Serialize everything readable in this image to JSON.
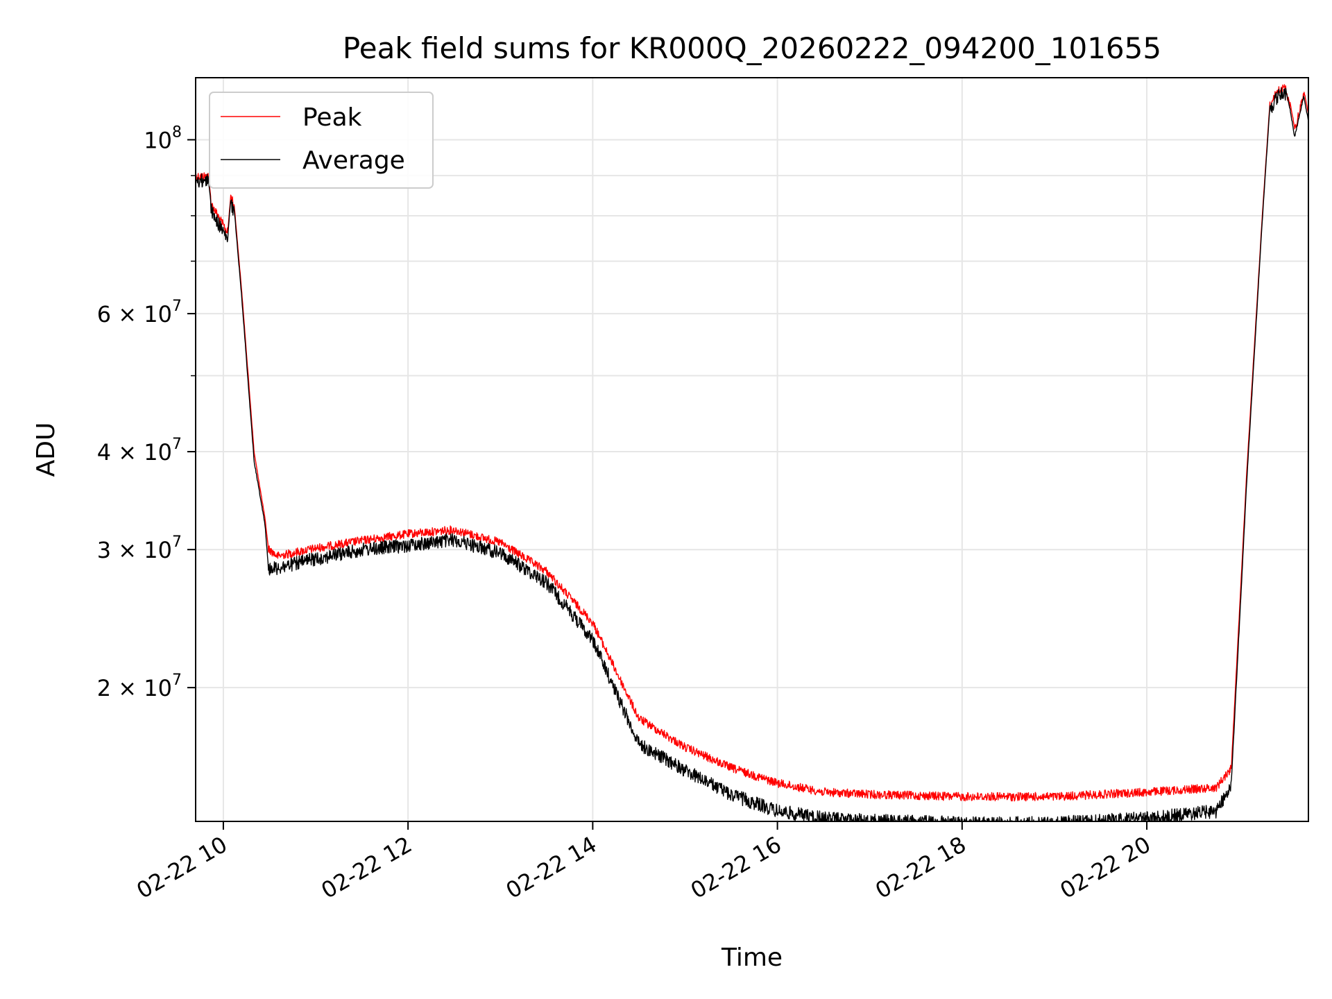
{
  "chart_data": {
    "type": "line",
    "title": "Peak field sums for KR000Q_20260222_094200_101655",
    "xlabel": "Time",
    "ylabel": "ADU",
    "y_scale": "log",
    "grid": true,
    "legend_position": "top-left",
    "xlim": [
      "2026-02-22 09:42",
      "2026-02-22 21:45"
    ],
    "ylim": [
      13500000,
      120000000
    ],
    "x_ticks": [
      {
        "value": "2026-02-22 10:00",
        "label": "02-22 10"
      },
      {
        "value": "2026-02-22 12:00",
        "label": "02-22 12"
      },
      {
        "value": "2026-02-22 14:00",
        "label": "02-22 14"
      },
      {
        "value": "2026-02-22 16:00",
        "label": "02-22 16"
      },
      {
        "value": "2026-02-22 18:00",
        "label": "02-22 18"
      },
      {
        "value": "2026-02-22 20:00",
        "label": "02-22 20"
      }
    ],
    "y_ticks": [
      {
        "value": 100000000,
        "base": "10",
        "exp": "8"
      },
      {
        "value": 60000000,
        "base": "6 × 10",
        "exp": "7"
      },
      {
        "value": 40000000,
        "base": "4 × 10",
        "exp": "7"
      },
      {
        "value": 30000000,
        "base": "3 × 10",
        "exp": "7"
      },
      {
        "value": 20000000,
        "base": "2 × 10",
        "exp": "7"
      }
    ],
    "y_minor_ticks": [
      90000000,
      80000000,
      70000000,
      50000000
    ],
    "series": [
      {
        "name": "Peak",
        "color": "#ff0000",
        "noise": 0.025,
        "x": [
          "2026-02-22 09:42",
          "2026-02-22 09:50",
          "2026-02-22 09:52",
          "2026-02-22 09:58",
          "2026-02-22 10:03",
          "2026-02-22 10:05",
          "2026-02-22 10:07",
          "2026-02-22 10:12",
          "2026-02-22 10:20",
          "2026-02-22 10:27",
          "2026-02-22 10:29",
          "2026-02-22 10:35",
          "2026-02-22 11:00",
          "2026-02-22 11:30",
          "2026-02-22 12:00",
          "2026-02-22 12:30",
          "2026-02-22 13:00",
          "2026-02-22 13:30",
          "2026-02-22 14:00",
          "2026-02-22 14:30",
          "2026-02-22 15:00",
          "2026-02-22 15:30",
          "2026-02-22 16:00",
          "2026-02-22 16:30",
          "2026-02-22 17:00",
          "2026-02-22 18:00",
          "2026-02-22 19:00",
          "2026-02-22 20:00",
          "2026-02-22 20:45",
          "2026-02-22 20:55",
          "2026-02-22 21:05",
          "2026-02-22 21:15",
          "2026-02-22 21:20",
          "2026-02-22 21:25",
          "2026-02-22 21:30",
          "2026-02-22 21:33",
          "2026-02-22 21:36",
          "2026-02-22 21:42",
          "2026-02-22 21:45"
        ],
        "y": [
          91000000,
          91000000,
          84000000,
          80000000,
          77000000,
          86000000,
          83000000,
          64000000,
          40000000,
          33000000,
          30500000,
          29800000,
          30500000,
          31200000,
          31800000,
          32200000,
          31000000,
          28500000,
          24500000,
          18500000,
          17000000,
          16000000,
          15300000,
          14900000,
          14800000,
          14700000,
          14700000,
          14900000,
          15100000,
          16000000,
          38000000,
          80000000,
          112000000,
          117000000,
          118000000,
          112000000,
          104000000,
          116000000,
          108000000
        ]
      },
      {
        "name": "Average",
        "color": "#000000",
        "noise": 0.04,
        "x": [
          "2026-02-22 09:42",
          "2026-02-22 09:50",
          "2026-02-22 09:52",
          "2026-02-22 09:58",
          "2026-02-22 10:03",
          "2026-02-22 10:05",
          "2026-02-22 10:07",
          "2026-02-22 10:12",
          "2026-02-22 10:20",
          "2026-02-22 10:27",
          "2026-02-22 10:29",
          "2026-02-22 10:35",
          "2026-02-22 11:00",
          "2026-02-22 11:30",
          "2026-02-22 12:00",
          "2026-02-22 12:30",
          "2026-02-22 13:00",
          "2026-02-22 13:30",
          "2026-02-22 14:00",
          "2026-02-22 14:30",
          "2026-02-22 15:00",
          "2026-02-22 15:30",
          "2026-02-22 16:00",
          "2026-02-22 16:30",
          "2026-02-22 17:00",
          "2026-02-22 18:00",
          "2026-02-22 19:00",
          "2026-02-22 20:00",
          "2026-02-22 20:45",
          "2026-02-22 20:55",
          "2026-02-22 21:05",
          "2026-02-22 21:15",
          "2026-02-22 21:20",
          "2026-02-22 21:25",
          "2026-02-22 21:30",
          "2026-02-22 21:33",
          "2026-02-22 21:36",
          "2026-02-22 21:42",
          "2026-02-22 21:45"
        ],
        "y": [
          90500000,
          90500000,
          83000000,
          79000000,
          76000000,
          85000000,
          82000000,
          63000000,
          39000000,
          32500000,
          29000000,
          29000000,
          29800000,
          30600000,
          31000000,
          31500000,
          30300000,
          27800000,
          23500000,
          17300000,
          16000000,
          14900000,
          14200000,
          13900000,
          13800000,
          13700000,
          13700000,
          13900000,
          14200000,
          15300000,
          37000000,
          79000000,
          111000000,
          116000000,
          117000000,
          110000000,
          101000000,
          114000000,
          106000000
        ]
      }
    ]
  }
}
